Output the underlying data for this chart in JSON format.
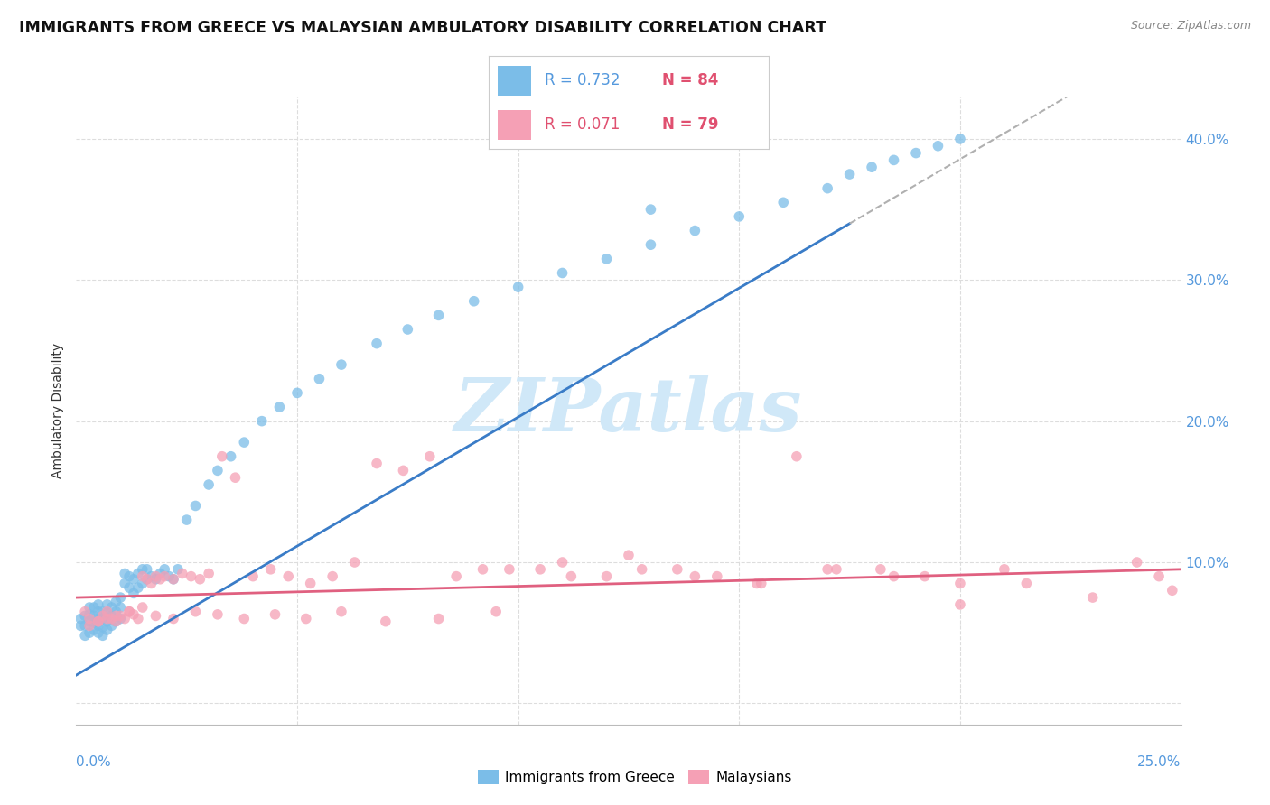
{
  "title": "IMMIGRANTS FROM GREECE VS MALAYSIAN AMBULATORY DISABILITY CORRELATION CHART",
  "source": "Source: ZipAtlas.com",
  "ylabel": "Ambulatory Disability",
  "xlim": [
    0.0,
    0.25
  ],
  "ylim": [
    -0.015,
    0.43
  ],
  "yticks": [
    0.0,
    0.1,
    0.2,
    0.3,
    0.4
  ],
  "ytick_labels": [
    "",
    "10.0%",
    "20.0%",
    "30.0%",
    "40.0%"
  ],
  "blue_color": "#7bbde8",
  "pink_color": "#f5a0b5",
  "blue_line_color": "#3a7cc7",
  "pink_line_color": "#e06080",
  "dashed_line_color": "#b0b0b0",
  "watermark": "ZIPatlas",
  "watermark_color": "#d0e8f8",
  "title_fontsize": 12.5,
  "axis_label_fontsize": 10,
  "tick_fontsize": 11,
  "greece_x": [
    0.001,
    0.001,
    0.002,
    0.002,
    0.002,
    0.003,
    0.003,
    0.003,
    0.003,
    0.004,
    0.004,
    0.004,
    0.004,
    0.005,
    0.005,
    0.005,
    0.005,
    0.005,
    0.006,
    0.006,
    0.006,
    0.006,
    0.007,
    0.007,
    0.007,
    0.007,
    0.008,
    0.008,
    0.008,
    0.009,
    0.009,
    0.009,
    0.01,
    0.01,
    0.01,
    0.011,
    0.011,
    0.012,
    0.012,
    0.013,
    0.013,
    0.014,
    0.014,
    0.015,
    0.015,
    0.016,
    0.016,
    0.017,
    0.018,
    0.019,
    0.02,
    0.021,
    0.022,
    0.023,
    0.025,
    0.027,
    0.03,
    0.032,
    0.035,
    0.038,
    0.042,
    0.046,
    0.05,
    0.055,
    0.06,
    0.068,
    0.075,
    0.082,
    0.09,
    0.1,
    0.11,
    0.12,
    0.13,
    0.14,
    0.15,
    0.16,
    0.17,
    0.175,
    0.18,
    0.185,
    0.19,
    0.195,
    0.2,
    0.13
  ],
  "greece_y": [
    0.055,
    0.06,
    0.048,
    0.055,
    0.062,
    0.05,
    0.058,
    0.063,
    0.068,
    0.052,
    0.057,
    0.062,
    0.068,
    0.05,
    0.055,
    0.06,
    0.065,
    0.07,
    0.048,
    0.054,
    0.06,
    0.065,
    0.052,
    0.058,
    0.064,
    0.07,
    0.055,
    0.062,
    0.068,
    0.058,
    0.065,
    0.072,
    0.06,
    0.068,
    0.075,
    0.085,
    0.092,
    0.082,
    0.09,
    0.078,
    0.088,
    0.082,
    0.092,
    0.085,
    0.095,
    0.088,
    0.095,
    0.09,
    0.088,
    0.092,
    0.095,
    0.09,
    0.088,
    0.095,
    0.13,
    0.14,
    0.155,
    0.165,
    0.175,
    0.185,
    0.2,
    0.21,
    0.22,
    0.23,
    0.24,
    0.255,
    0.265,
    0.275,
    0.285,
    0.295,
    0.305,
    0.315,
    0.325,
    0.335,
    0.345,
    0.355,
    0.365,
    0.375,
    0.38,
    0.385,
    0.39,
    0.395,
    0.4,
    0.35
  ],
  "malaysia_x": [
    0.002,
    0.003,
    0.005,
    0.006,
    0.007,
    0.008,
    0.009,
    0.01,
    0.011,
    0.012,
    0.013,
    0.014,
    0.015,
    0.016,
    0.017,
    0.018,
    0.019,
    0.02,
    0.022,
    0.024,
    0.026,
    0.028,
    0.03,
    0.033,
    0.036,
    0.04,
    0.044,
    0.048,
    0.053,
    0.058,
    0.063,
    0.068,
    0.074,
    0.08,
    0.086,
    0.092,
    0.098,
    0.105,
    0.112,
    0.12,
    0.128,
    0.136,
    0.145,
    0.154,
    0.163,
    0.172,
    0.182,
    0.192,
    0.2,
    0.21,
    0.003,
    0.005,
    0.007,
    0.009,
    0.012,
    0.015,
    0.018,
    0.022,
    0.027,
    0.032,
    0.038,
    0.045,
    0.052,
    0.06,
    0.07,
    0.082,
    0.095,
    0.11,
    0.125,
    0.14,
    0.155,
    0.17,
    0.185,
    0.2,
    0.215,
    0.23,
    0.24,
    0.245,
    0.248
  ],
  "malaysia_y": [
    0.065,
    0.06,
    0.058,
    0.062,
    0.065,
    0.06,
    0.058,
    0.062,
    0.06,
    0.065,
    0.063,
    0.06,
    0.09,
    0.088,
    0.085,
    0.09,
    0.088,
    0.09,
    0.088,
    0.092,
    0.09,
    0.088,
    0.092,
    0.175,
    0.16,
    0.09,
    0.095,
    0.09,
    0.085,
    0.09,
    0.1,
    0.17,
    0.165,
    0.175,
    0.09,
    0.095,
    0.095,
    0.095,
    0.09,
    0.09,
    0.095,
    0.095,
    0.09,
    0.085,
    0.175,
    0.095,
    0.095,
    0.09,
    0.085,
    0.095,
    0.055,
    0.058,
    0.06,
    0.062,
    0.065,
    0.068,
    0.062,
    0.06,
    0.065,
    0.063,
    0.06,
    0.063,
    0.06,
    0.065,
    0.058,
    0.06,
    0.065,
    0.1,
    0.105,
    0.09,
    0.085,
    0.095,
    0.09,
    0.07,
    0.085,
    0.075,
    0.1,
    0.09,
    0.08
  ]
}
